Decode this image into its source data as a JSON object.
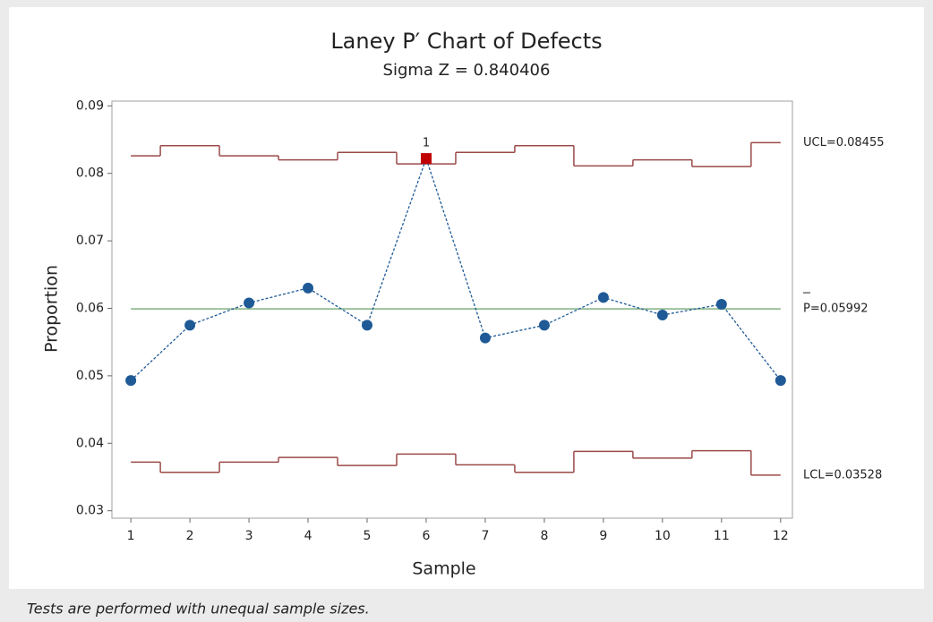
{
  "chart_data": {
    "type": "control",
    "title": "Laney P′ Chart of Defects",
    "subtitle": "Sigma Z = 0.840406",
    "xlabel": "Sample",
    "ylabel": "Proportion",
    "footnote": "Tests are performed with unequal sample sizes.",
    "x": [
      1,
      2,
      3,
      4,
      5,
      6,
      7,
      8,
      9,
      10,
      11,
      12
    ],
    "xlim": [
      0.68,
      12.2
    ],
    "xticks": [
      1,
      2,
      3,
      4,
      5,
      6,
      7,
      8,
      9,
      10,
      11,
      12
    ],
    "ylim": [
      0.0289,
      0.0907
    ],
    "yticks": [
      0.03,
      0.04,
      0.05,
      0.06,
      0.07,
      0.08,
      0.09
    ],
    "series": [
      {
        "name": "Proportion",
        "color": "#1f5a96",
        "values": [
          0.0493,
          0.0575,
          0.0608,
          0.063,
          0.0575,
          0.0822,
          0.0556,
          0.0575,
          0.0616,
          0.059,
          0.0606,
          0.0493
        ]
      },
      {
        "name": "UCL",
        "color": "#9a4a48",
        "values": [
          0.0826,
          0.0841,
          0.0826,
          0.082,
          0.0831,
          0.0814,
          0.0831,
          0.0841,
          0.0811,
          0.082,
          0.081,
          0.08455
        ]
      },
      {
        "name": "LCL",
        "color": "#9a4a48",
        "values": [
          0.0372,
          0.0357,
          0.0372,
          0.0379,
          0.0367,
          0.0384,
          0.0368,
          0.0357,
          0.0388,
          0.0378,
          0.0389,
          0.03528
        ]
      }
    ],
    "center": 0.05992,
    "center_color": "#7fb07f",
    "ucl_label": "UCL=0.08455",
    "center_label": "P=0.05992",
    "lcl_label": "LCL=0.03528",
    "flags": [
      {
        "x": 6,
        "text": "1",
        "color": "#c00000"
      }
    ]
  }
}
